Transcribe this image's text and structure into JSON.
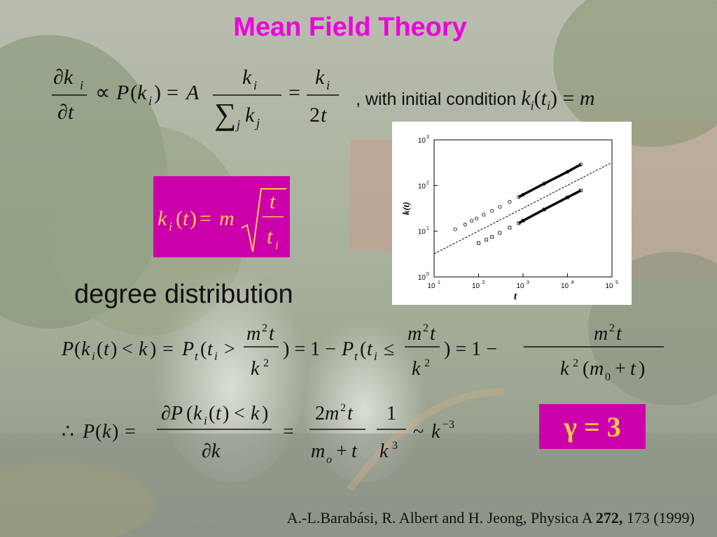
{
  "title": "Mean Field Theory",
  "initial_condition_text": ", with initial condition",
  "section_label": "degree distribution",
  "gamma_label": "γ = 3",
  "citation": {
    "authors": "A.-L.Barabási, R. Albert and H. Jeong, Physica A",
    "volume": "272,",
    "pages_year": "173 (1999)"
  },
  "colors": {
    "title": "#ee00dd",
    "box_bg": "#cc00aa",
    "box_text": "#ffcc44"
  },
  "chart_data": {
    "type": "scatter",
    "title": "",
    "xlabel": "t",
    "ylabel": "k(t)",
    "x_scale": "log",
    "y_scale": "log",
    "xlim": [
      10,
      100000
    ],
    "ylim": [
      1,
      1000
    ],
    "x_ticks": [
      "10",
      "10",
      "10",
      "10",
      "10"
    ],
    "x_tick_exps": [
      "1",
      "2",
      "3",
      "4",
      "5"
    ],
    "y_ticks": [
      "10",
      "10",
      "10",
      "10"
    ],
    "y_tick_exps": [
      "0",
      "1",
      "2",
      "3"
    ],
    "series": [
      {
        "x": [
          30,
          50,
          70,
          90,
          130,
          200,
          300,
          500,
          800,
          1000,
          3000,
          10000,
          20000
        ],
        "y": [
          11,
          14,
          17,
          19,
          23,
          28,
          34,
          44,
          56,
          63,
          110,
          200,
          290
        ]
      },
      {
        "x": [
          100,
          150,
          200,
          300,
          500,
          800,
          1000,
          3000,
          10000,
          20000
        ],
        "y": [
          5.5,
          6.5,
          7.5,
          9.2,
          12,
          15,
          17,
          30,
          55,
          78
        ]
      }
    ],
    "reference_line": {
      "x": [
        10,
        100000
      ],
      "y": [
        3.2,
        320
      ]
    }
  }
}
